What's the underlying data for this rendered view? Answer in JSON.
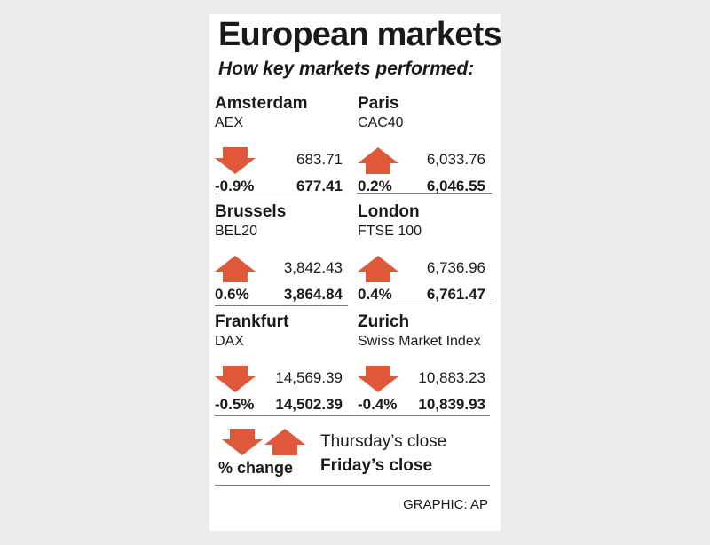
{
  "title": "European markets",
  "subtitle": "How key markets performed:",
  "colors": {
    "arrow": "#e0583a",
    "rule": "#7a7a7a",
    "background": "#ececec",
    "card": "#ffffff"
  },
  "markets": [
    {
      "city": "Amsterdam",
      "index": "AEX",
      "direction": "down",
      "prev": "683.71",
      "pct": "-0.9%",
      "close": "677.41"
    },
    {
      "city": "Paris",
      "index": "CAC40",
      "direction": "up",
      "prev": "6,033.76",
      "pct": "0.2%",
      "close": "6,046.55"
    },
    {
      "city": "Brussels",
      "index": "BEL20",
      "direction": "up",
      "prev": "3,842.43",
      "pct": "0.6%",
      "close": "3,864.84"
    },
    {
      "city": "London",
      "index": "FTSE 100",
      "direction": "up",
      "prev": "6,736.96",
      "pct": "0.4%",
      "close": "6,761.47"
    },
    {
      "city": "Frankfurt",
      "index": "DAX",
      "direction": "down",
      "prev": "14,569.39",
      "pct": "-0.5%",
      "close": "14,502.39"
    },
    {
      "city": "Zurich",
      "index": "Swiss Market Index",
      "direction": "down",
      "prev": "10,883.23",
      "pct": "-0.4%",
      "close": "10,839.93"
    }
  ],
  "legend": {
    "pct_label": "% change",
    "prev_label": "Thursday’s close",
    "close_label": "Friday’s close"
  },
  "credit": "GRAPHIC: AP"
}
